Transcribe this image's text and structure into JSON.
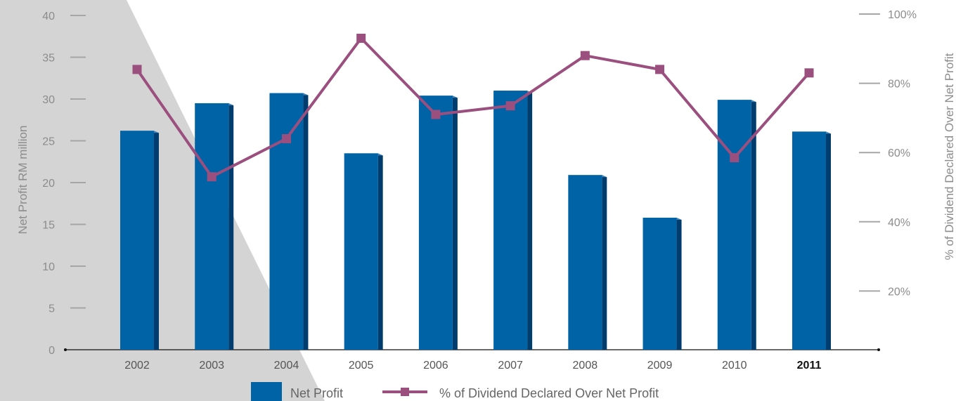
{
  "chart_data": {
    "type": "bar",
    "categories": [
      "2002",
      "2003",
      "2004",
      "2005",
      "2006",
      "2007",
      "2008",
      "2009",
      "2010",
      "2011"
    ],
    "highlight_category": "2011",
    "series": [
      {
        "name": "Net Profit",
        "type": "bar",
        "axis": "left",
        "color": "#0063a6",
        "values": [
          26.2,
          29.5,
          30.7,
          23.5,
          30.4,
          31.0,
          20.9,
          15.8,
          29.9,
          26.1
        ]
      },
      {
        "name": "% of Dividend Declared Over Net Profit",
        "type": "line",
        "axis": "right",
        "color": "#9b4f7f",
        "values": [
          84,
          53,
          64,
          93,
          71,
          73.5,
          88,
          84,
          58.5,
          83
        ]
      }
    ],
    "left_axis": {
      "title": "Net Profit RM million",
      "min": 0,
      "max": 40,
      "ticks": [
        0,
        5,
        10,
        15,
        20,
        25,
        30,
        35,
        40
      ]
    },
    "right_axis": {
      "title": "% of Dividend Declared Over Net Profit",
      "min": 0,
      "max": 100,
      "ticks": [
        20,
        40,
        60,
        80,
        100
      ],
      "tick_labels": [
        "20%",
        "40%",
        "60%",
        "80%",
        "100%"
      ]
    },
    "legend_position": "bottom",
    "background_shape_color": "#d4d4d4"
  }
}
